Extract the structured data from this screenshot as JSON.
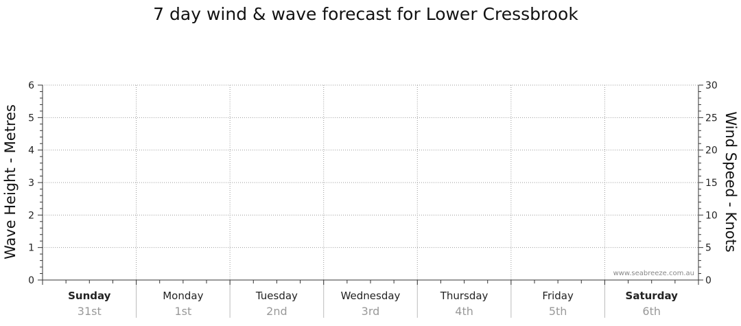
{
  "chart_data": {
    "type": "line",
    "title": "7 day wind & wave forecast for Lower Cressbrook",
    "ylabel_left": "Wave Height - Metres",
    "ylabel_right": "Wind Speed - Knots",
    "ylim_left": [
      0,
      6
    ],
    "ylim_right": [
      0,
      30
    ],
    "yticks_left": [
      "0",
      "1",
      "2",
      "3",
      "4",
      "5",
      "6"
    ],
    "yticks_right": [
      "0",
      "5",
      "10",
      "15",
      "20",
      "25",
      "30"
    ],
    "days": [
      {
        "name": "Sunday",
        "date": "31st",
        "bold": true
      },
      {
        "name": "Monday",
        "date": "1st",
        "bold": false
      },
      {
        "name": "Tuesday",
        "date": "2nd",
        "bold": false
      },
      {
        "name": "Wednesday",
        "date": "3rd",
        "bold": false
      },
      {
        "name": "Thursday",
        "date": "4th",
        "bold": false
      },
      {
        "name": "Friday",
        "date": "5th",
        "bold": false
      },
      {
        "name": "Saturday",
        "date": "6th",
        "bold": true
      }
    ],
    "grid": true,
    "series": [],
    "watermark": "www.seabreeze.com.au"
  }
}
